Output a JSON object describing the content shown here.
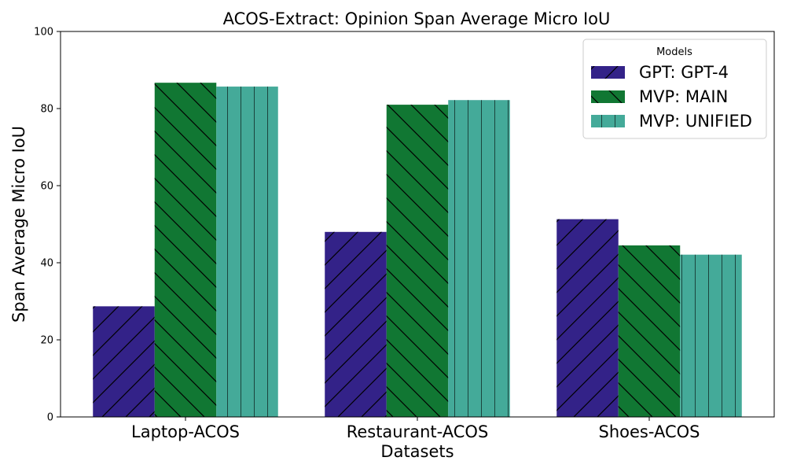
{
  "chart_data": {
    "type": "bar",
    "title": "ACOS-Extract: Opinion Span Average Micro IoU",
    "xlabel": "Datasets",
    "ylabel": "Span Average Micro IoU",
    "ylim": [
      0,
      100
    ],
    "yticks": [
      "0",
      "20",
      "40",
      "60",
      "80",
      "100"
    ],
    "categories": [
      "Laptop-ACOS",
      "Restaurant-ACOS",
      "Shoes-ACOS"
    ],
    "legend_title": "Models",
    "legend_position": "top-right",
    "series": [
      {
        "name": "GPT: GPT-4",
        "values": [
          28.7,
          48.0,
          51.3
        ],
        "color": "#332288",
        "hatch": "forward-diagonal"
      },
      {
        "name": "MVP: MAIN",
        "values": [
          86.7,
          81.0,
          44.5
        ],
        "color": "#117733",
        "hatch": "back-diagonal"
      },
      {
        "name": "MVP: UNIFIED",
        "values": [
          85.7,
          82.2,
          42.1
        ],
        "color": "#44AA99",
        "hatch": "vertical"
      }
    ]
  }
}
